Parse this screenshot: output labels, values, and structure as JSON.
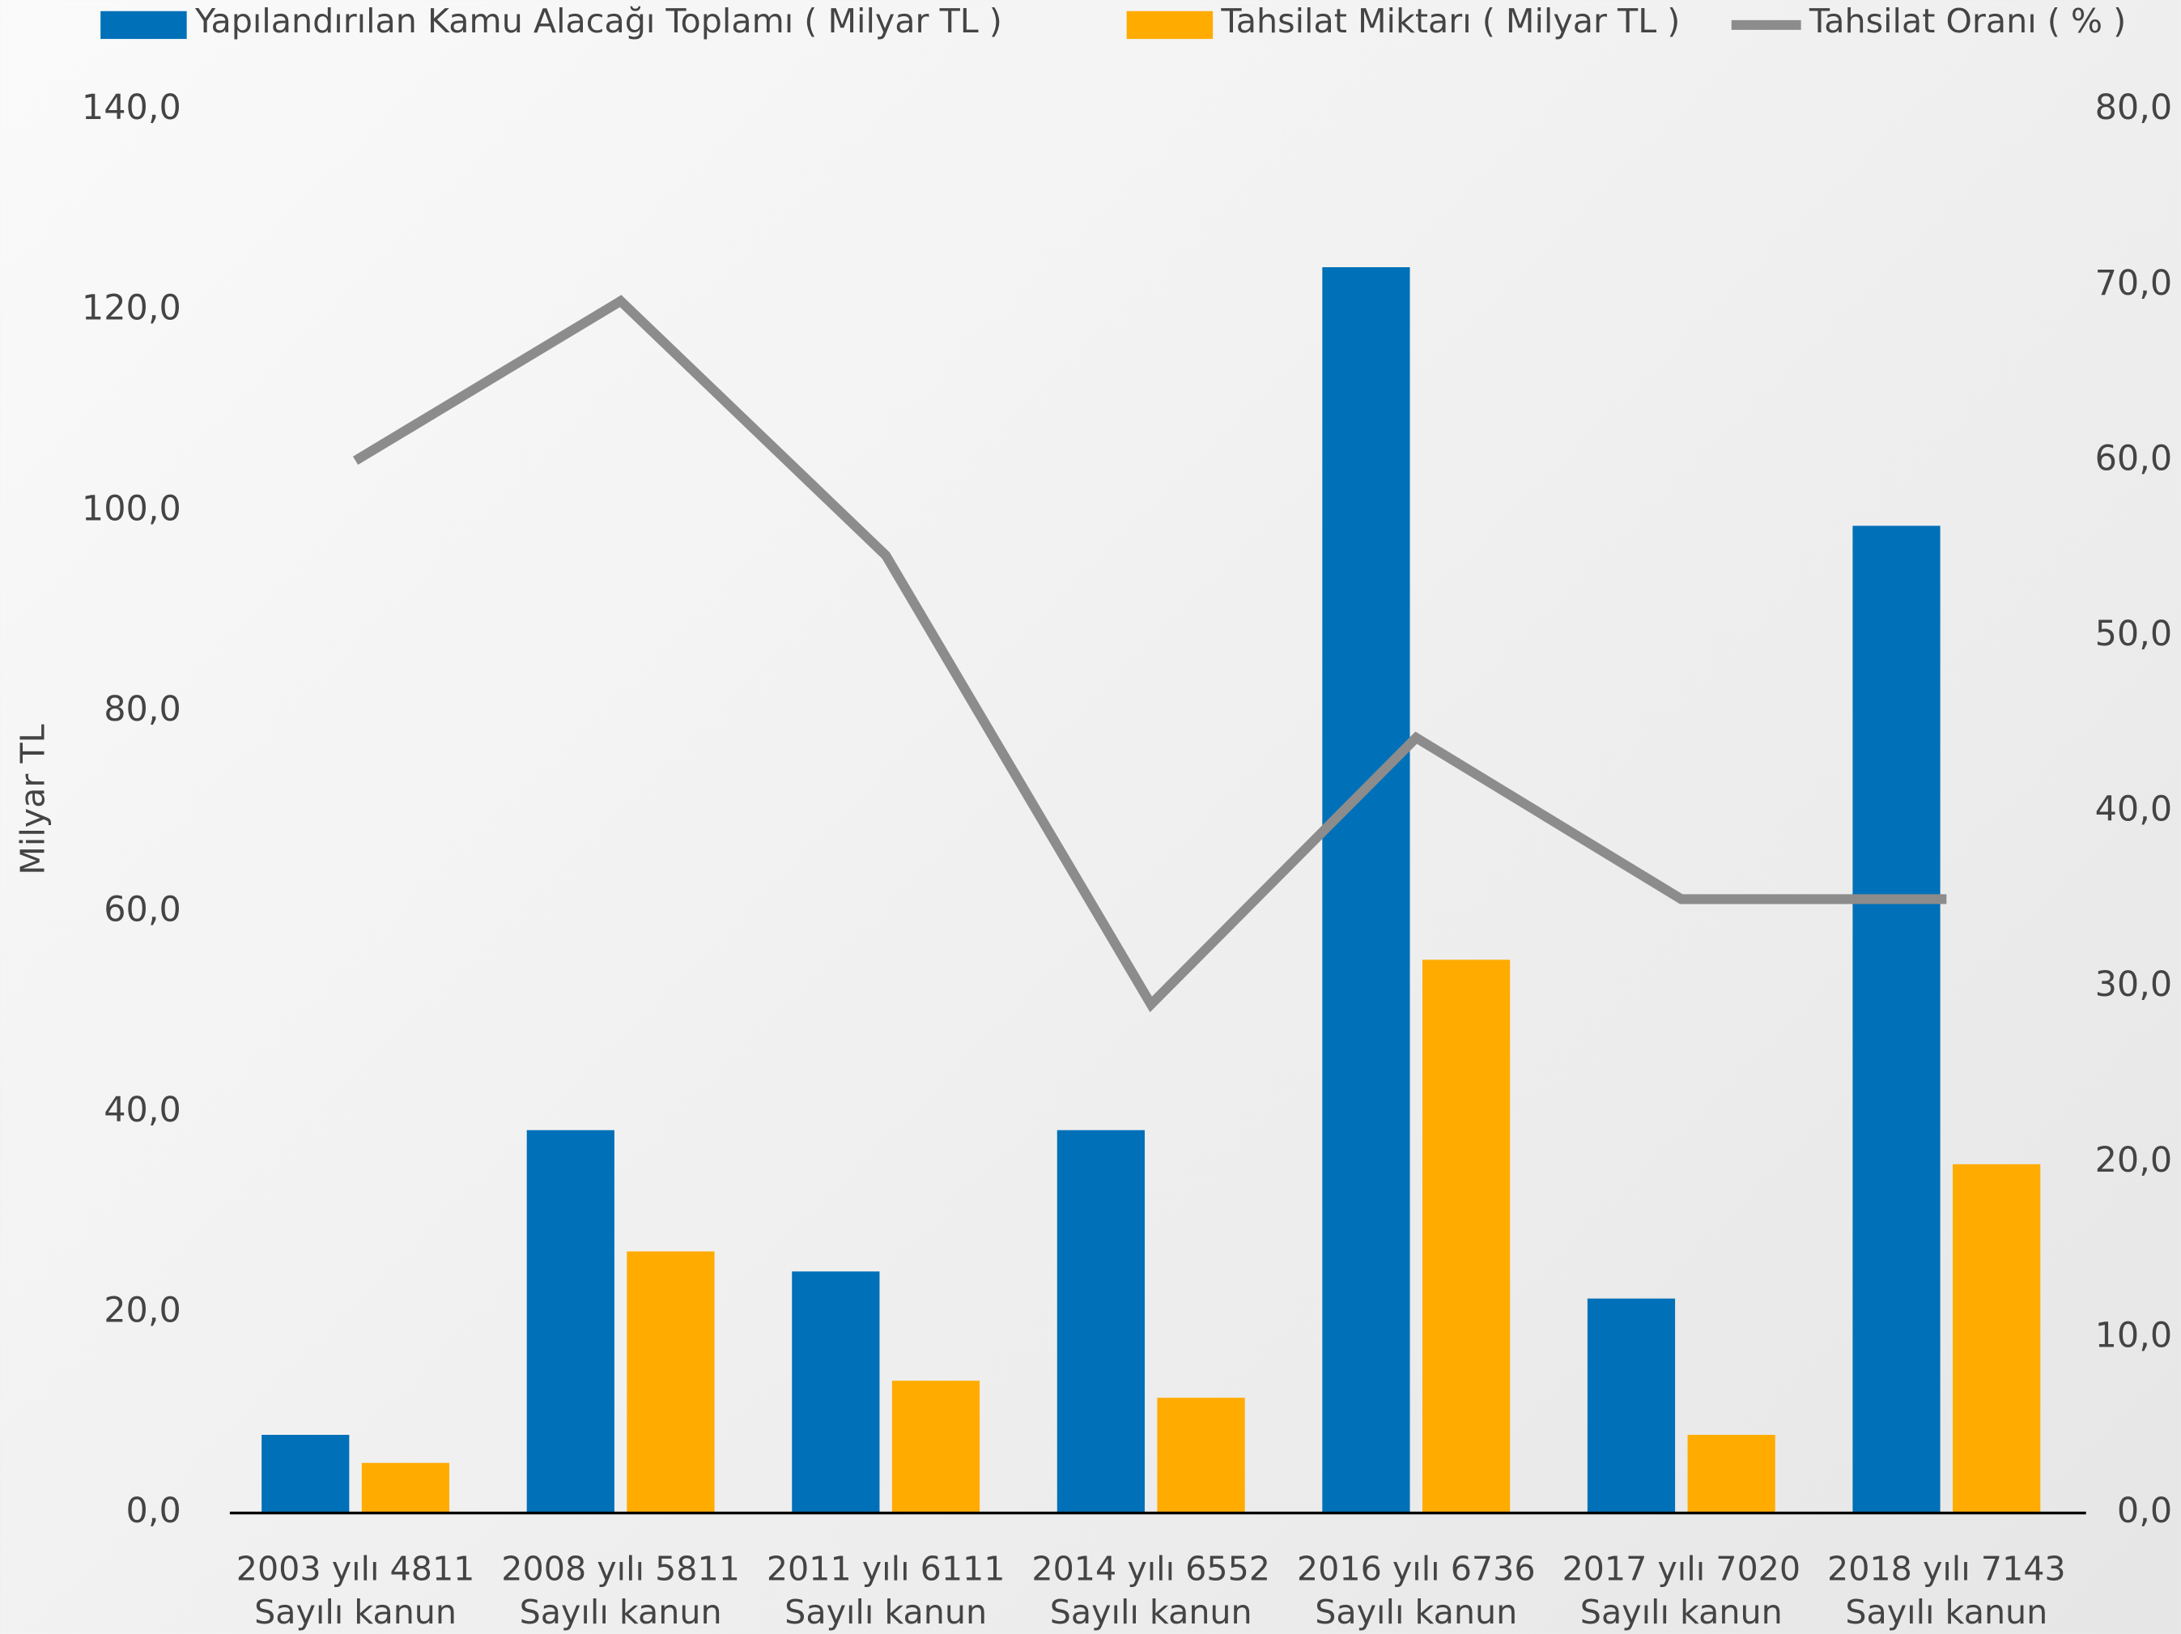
{
  "chart_data": {
    "type": "bar_line",
    "y_label": "Milyar TL",
    "categories": [
      [
        "2003 yılı 4811",
        "Sayılı kanun"
      ],
      [
        "2008 yılı 5811",
        "Sayılı kanun"
      ],
      [
        "2011 yılı 6111",
        "Sayılı kanun"
      ],
      [
        "2014 yılı 6552",
        "Sayılı kanun"
      ],
      [
        "2016 yılı 6736",
        "Sayılı kanun"
      ],
      [
        "2017 yılı 7020",
        "Sayılı kanun"
      ],
      [
        "2018 yılı 7143",
        "Sayılı kanun"
      ]
    ],
    "series": [
      {
        "name": "Yapılandırılan Kamu Alacağı Toplamı ( Milyar TL )",
        "color": "#0070b8",
        "type": "bar",
        "values": [
          7.8,
          38.2,
          24.1,
          38.2,
          124.3,
          21.4,
          98.5
        ]
      },
      {
        "name": "Tahsilat Miktarı ( Milyar TL )",
        "color": "#ffab00",
        "type": "bar",
        "values": [
          5.0,
          26.1,
          13.2,
          11.5,
          55.2,
          7.8,
          34.8
        ]
      },
      {
        "name": "Tahsilat Oranı ( % )",
        "color": "#8c8c8c",
        "type": "line",
        "axis": "y2",
        "values": [
          60.0,
          69.1,
          54.6,
          29.0,
          44.2,
          35.0,
          35.0
        ]
      }
    ],
    "ylim": [
      0,
      140
    ],
    "yticks": [
      {
        "value": 0,
        "label": "0,0"
      },
      {
        "value": 20,
        "label": "20,0"
      },
      {
        "value": 40,
        "label": "40,0"
      },
      {
        "value": 60,
        "label": "60,0"
      },
      {
        "value": 80,
        "label": "80,0"
      },
      {
        "value": 100,
        "label": "100,0"
      },
      {
        "value": 120,
        "label": "120,0"
      },
      {
        "value": 140,
        "label": "140,0"
      }
    ],
    "y2lim": [
      0,
      80
    ],
    "y2ticks": [
      {
        "value": 0,
        "label": "0,0"
      },
      {
        "value": 10,
        "label": "10,0"
      },
      {
        "value": 20,
        "label": "20,0"
      },
      {
        "value": 30,
        "label": "30,0"
      },
      {
        "value": 40,
        "label": "40,0"
      },
      {
        "value": 50,
        "label": "50,0"
      },
      {
        "value": 60,
        "label": "60,0"
      },
      {
        "value": 70,
        "label": "70,0"
      },
      {
        "value": 80,
        "label": "80,0"
      }
    ],
    "legend": "top"
  }
}
